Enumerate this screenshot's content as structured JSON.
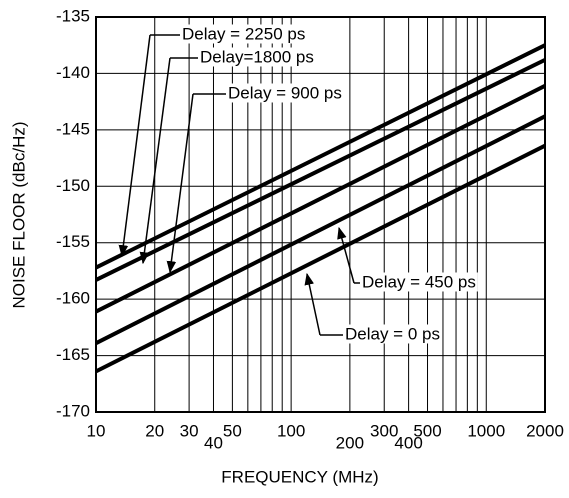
{
  "chart_data": {
    "type": "line",
    "xlabel": "FREQUENCY (MHz)",
    "ylabel": "NOISE FLOOR (dBc/Hz)",
    "x": [
      10,
      2000
    ],
    "series": [
      {
        "name": "Delay = 2250 ps",
        "color": "#000000",
        "values": [
          -157.2,
          -137.5
        ]
      },
      {
        "name": "Delay=1800 ps",
        "color": "#000000",
        "values": [
          -158.3,
          -138.8
        ]
      },
      {
        "name": "Delay = 900 ps",
        "color": "#000000",
        "values": [
          -161.1,
          -141.1
        ]
      },
      {
        "name": "Delay = 450 ps",
        "color": "#000000",
        "values": [
          -163.9,
          -143.8
        ]
      },
      {
        "name": "Delay = 0 ps",
        "color": "#000000",
        "values": [
          -166.4,
          -146.4
        ]
      }
    ],
    "xscale": "log",
    "xlim": [
      10,
      2000
    ],
    "ylim": [
      -170,
      -135
    ],
    "xticks": [
      10,
      20,
      30,
      40,
      50,
      100,
      200,
      300,
      400,
      500,
      1000,
      2000
    ],
    "xminor": [
      60,
      70,
      80,
      90,
      600,
      700,
      800,
      900
    ],
    "yticks": [
      -170,
      -165,
      -160,
      -155,
      -150,
      -145,
      -140,
      -135
    ],
    "grid": true
  }
}
